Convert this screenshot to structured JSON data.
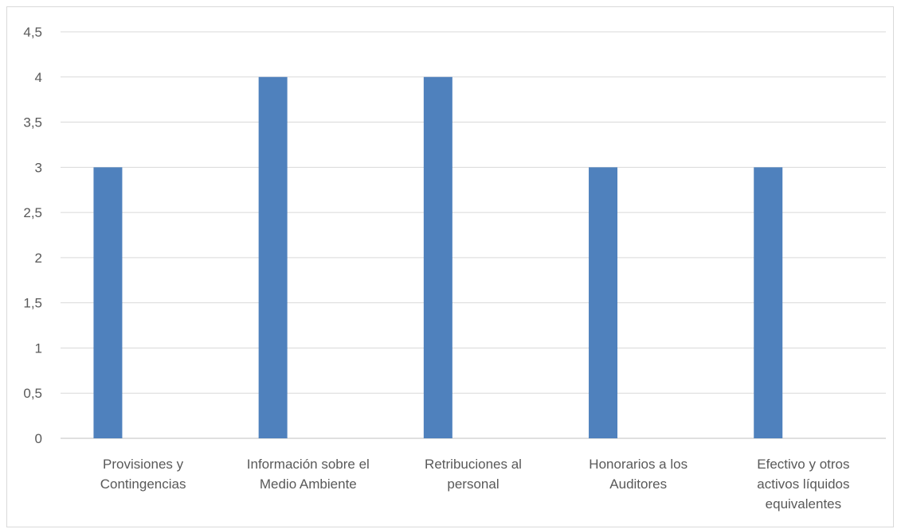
{
  "chart_data": {
    "type": "bar",
    "categories": [
      [
        "Provisiones y",
        "Contingencias"
      ],
      [
        "Información sobre el",
        "Medio Ambiente"
      ],
      [
        "Retribuciones al",
        "personal"
      ],
      [
        "Honorarios a los",
        "Auditores"
      ],
      [
        "Efectivo y otros",
        "activos líquidos",
        "equivalentes"
      ]
    ],
    "values": [
      3,
      4,
      4,
      3,
      3
    ],
    "ylim": [
      0,
      4.5
    ],
    "y_ticks": [
      "0",
      "0,5",
      "1",
      "1,5",
      "2",
      "2,5",
      "3",
      "3,5",
      "4",
      "4,5"
    ],
    "y_tick_values": [
      0,
      0.5,
      1,
      1.5,
      2,
      2.5,
      3,
      3.5,
      4,
      4.5
    ],
    "grid": true,
    "legend": "none",
    "colors": {
      "bar": "#4f81bd",
      "grid": "#d9d9d9",
      "text": "#595959"
    }
  }
}
